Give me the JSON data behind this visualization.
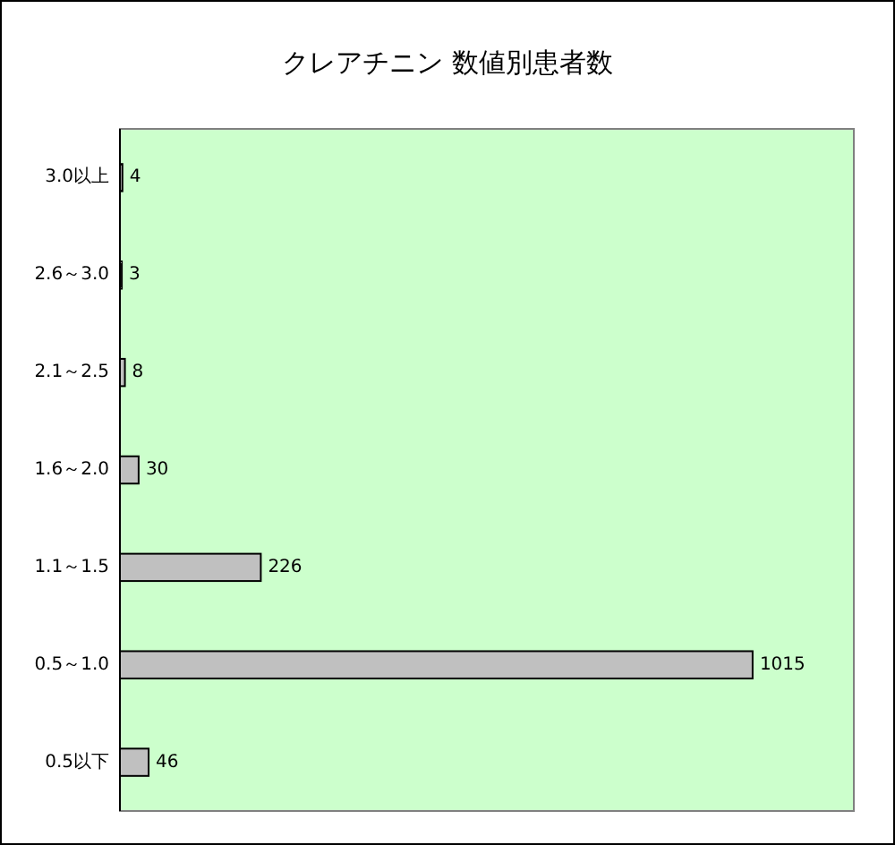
{
  "chart_data": {
    "type": "bar",
    "orientation": "horizontal",
    "title": "クレアチニン 数値別患者数",
    "categories": [
      "3.0以上",
      "2.6～3.0",
      "2.1～2.5",
      "1.6～2.0",
      "1.1～1.5",
      "0.5～1.0",
      "0.5以下"
    ],
    "values": [
      4,
      3,
      8,
      30,
      226,
      1015,
      46
    ],
    "color": "#c0c0c0",
    "data_labels": true
  }
}
